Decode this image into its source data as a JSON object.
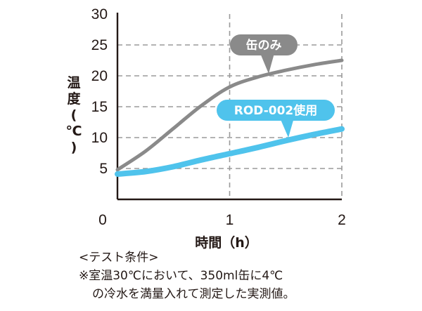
{
  "chart_data": {
    "type": "line",
    "ylabel": "温度（℃）",
    "xlabel": "時間（h）",
    "x_ticks": [
      "0",
      "1",
      "2"
    ],
    "y_ticks": [
      "5",
      "10",
      "15",
      "20",
      "25",
      "30"
    ],
    "xlim": [
      0,
      2
    ],
    "ylim": [
      0,
      30
    ],
    "grid": "horizontal dashed",
    "series": [
      {
        "name": "缶のみ",
        "color": "#8a8a8a",
        "x": [
          0,
          0.25,
          0.5,
          0.75,
          1.0,
          1.25,
          1.5,
          1.75,
          2.0
        ],
        "y": [
          4.8,
          7.8,
          11.5,
          15.2,
          18.2,
          19.8,
          20.9,
          21.8,
          22.5
        ]
      },
      {
        "name": "ROD-002使用",
        "color": "#4fc3ec",
        "x": [
          0,
          0.25,
          0.5,
          0.75,
          1.0,
          1.25,
          1.5,
          1.75,
          2.0
        ],
        "y": [
          4.1,
          4.5,
          5.3,
          6.4,
          7.4,
          8.4,
          9.5,
          10.5,
          11.4
        ]
      }
    ]
  },
  "notes": {
    "line1": "<テスト条件>",
    "line2": "※室温30℃において、350ml缶に4℃",
    "line3": "の冷水を満量入れて測定した実測値。"
  }
}
